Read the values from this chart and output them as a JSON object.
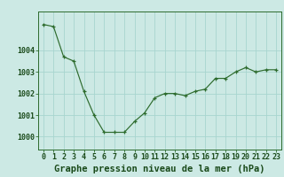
{
  "x": [
    0,
    1,
    2,
    3,
    4,
    5,
    6,
    7,
    8,
    9,
    10,
    11,
    12,
    13,
    14,
    15,
    16,
    17,
    18,
    19,
    20,
    21,
    22,
    23
  ],
  "y": [
    1005.2,
    1005.1,
    1003.7,
    1003.5,
    1002.1,
    1001.0,
    1000.2,
    1000.2,
    1000.2,
    1000.7,
    1001.1,
    1001.8,
    1002.0,
    1002.0,
    1001.9,
    1002.1,
    1002.2,
    1002.7,
    1002.7,
    1003.0,
    1003.2,
    1003.0,
    1003.1,
    1003.1
  ],
  "line_color": "#2d6b2d",
  "marker": "+",
  "bg_color": "#cce9e4",
  "grid_color": "#a8d5cf",
  "ylabel_ticks": [
    1000,
    1001,
    1002,
    1003,
    1004
  ],
  "ylim": [
    999.4,
    1005.8
  ],
  "xlim": [
    -0.5,
    23.5
  ],
  "xlabel": "Graphe pression niveau de la mer (hPa)",
  "xlabel_fontsize": 7.5,
  "tick_fontsize": 6.0,
  "label_color": "#1a4a1a"
}
